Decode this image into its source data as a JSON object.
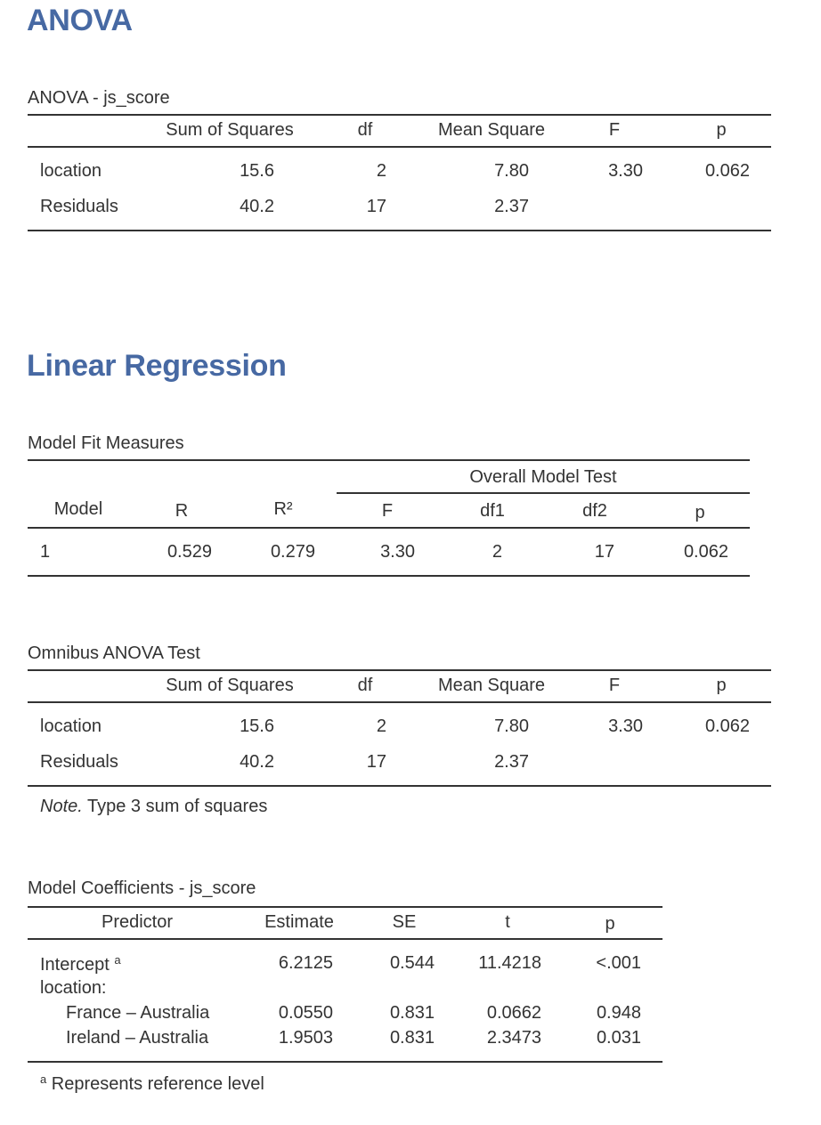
{
  "anova": {
    "heading": "ANOVA",
    "title": "ANOVA - js_score",
    "columns": [
      "Sum of Squares",
      "df",
      "Mean Square",
      "F",
      "p"
    ],
    "rows": [
      {
        "term": "location",
        "ss": "15.6",
        "df": "2",
        "ms": "7.80",
        "f": "3.30",
        "p": "0.062"
      },
      {
        "term": "Residuals",
        "ss": "40.2",
        "df": "17",
        "ms": "2.37",
        "f": "",
        "p": ""
      }
    ]
  },
  "regression": {
    "heading": "Linear Regression",
    "model_fit": {
      "title": "Model Fit Measures",
      "group_header": "Overall Model Test",
      "columns": [
        "Model",
        "R",
        "R²",
        "F",
        "df1",
        "df2",
        "p"
      ],
      "row": {
        "model": "1",
        "r": "0.529",
        "r2": "0.279",
        "f": "3.30",
        "df1": "2",
        "df2": "17",
        "p": "0.062"
      }
    },
    "omnibus": {
      "title": "Omnibus ANOVA Test",
      "columns": [
        "Sum of Squares",
        "df",
        "Mean Square",
        "F",
        "p"
      ],
      "rows": [
        {
          "term": "location",
          "ss": "15.6",
          "df": "2",
          "ms": "7.80",
          "f": "3.30",
          "p": "0.062"
        },
        {
          "term": "Residuals",
          "ss": "40.2",
          "df": "17",
          "ms": "2.37",
          "f": "",
          "p": ""
        }
      ],
      "note_label": "Note.",
      "note_text": "Type 3 sum of squares"
    },
    "coefficients": {
      "title": "Model Coefficients - js_score",
      "columns": [
        "Predictor",
        "Estimate",
        "SE",
        "t",
        "p"
      ],
      "intercept": {
        "label": "Intercept",
        "marker": "a",
        "estimate": "6.2125",
        "se": "0.544",
        "t": "11.4218",
        "p": "<.001"
      },
      "group_label": "location:",
      "rows": [
        {
          "label": "France – Australia",
          "estimate": "0.0550",
          "se": "0.831",
          "t": "0.0662",
          "p": "0.948"
        },
        {
          "label": "Ireland – Australia",
          "estimate": "1.9503",
          "se": "0.831",
          "t": "2.3473",
          "p": "0.031"
        }
      ],
      "footnote_marker": "a",
      "footnote_text": "Represents reference level"
    }
  }
}
